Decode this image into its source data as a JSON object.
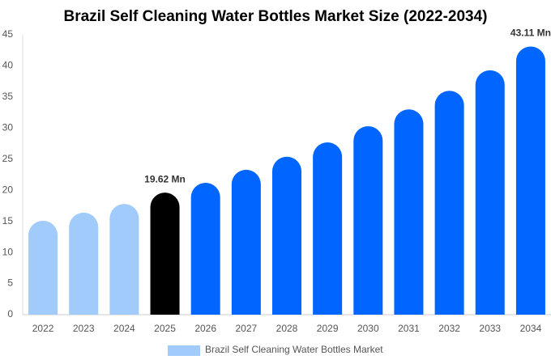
{
  "chart_data": {
    "type": "bar",
    "title": "Brazil Self Cleaning Water Bottles Market Size (2022-2034)",
    "categories": [
      "2022",
      "2023",
      "2024",
      "2025",
      "2026",
      "2027",
      "2028",
      "2029",
      "2030",
      "2031",
      "2032",
      "2033",
      "2034"
    ],
    "series": [
      {
        "name": "Brazil Self Cleaning Water Bottles Market",
        "color": "#a0cbfb",
        "colors": [
          "#a0cbfb",
          "#a0cbfb",
          "#a0cbfb",
          "#000000",
          "#0066ff",
          "#0066ff",
          "#0066ff",
          "#0066ff",
          "#0066ff",
          "#0066ff",
          "#0066ff",
          "#0066ff",
          "#0066ff"
        ],
        "values": [
          15.1,
          16.4,
          17.8,
          19.62,
          21.2,
          23.3,
          25.4,
          27.7,
          30.3,
          33.0,
          36.0,
          39.3,
          43.11
        ],
        "value_labels": [
          null,
          null,
          null,
          "19.62 Mn",
          null,
          null,
          null,
          null,
          null,
          null,
          null,
          null,
          "43.11 Mn"
        ]
      }
    ],
    "ylim": [
      0,
      45
    ],
    "yticks": [
      0,
      5,
      10,
      15,
      20,
      25,
      30,
      35,
      40,
      45
    ],
    "grid": false
  }
}
